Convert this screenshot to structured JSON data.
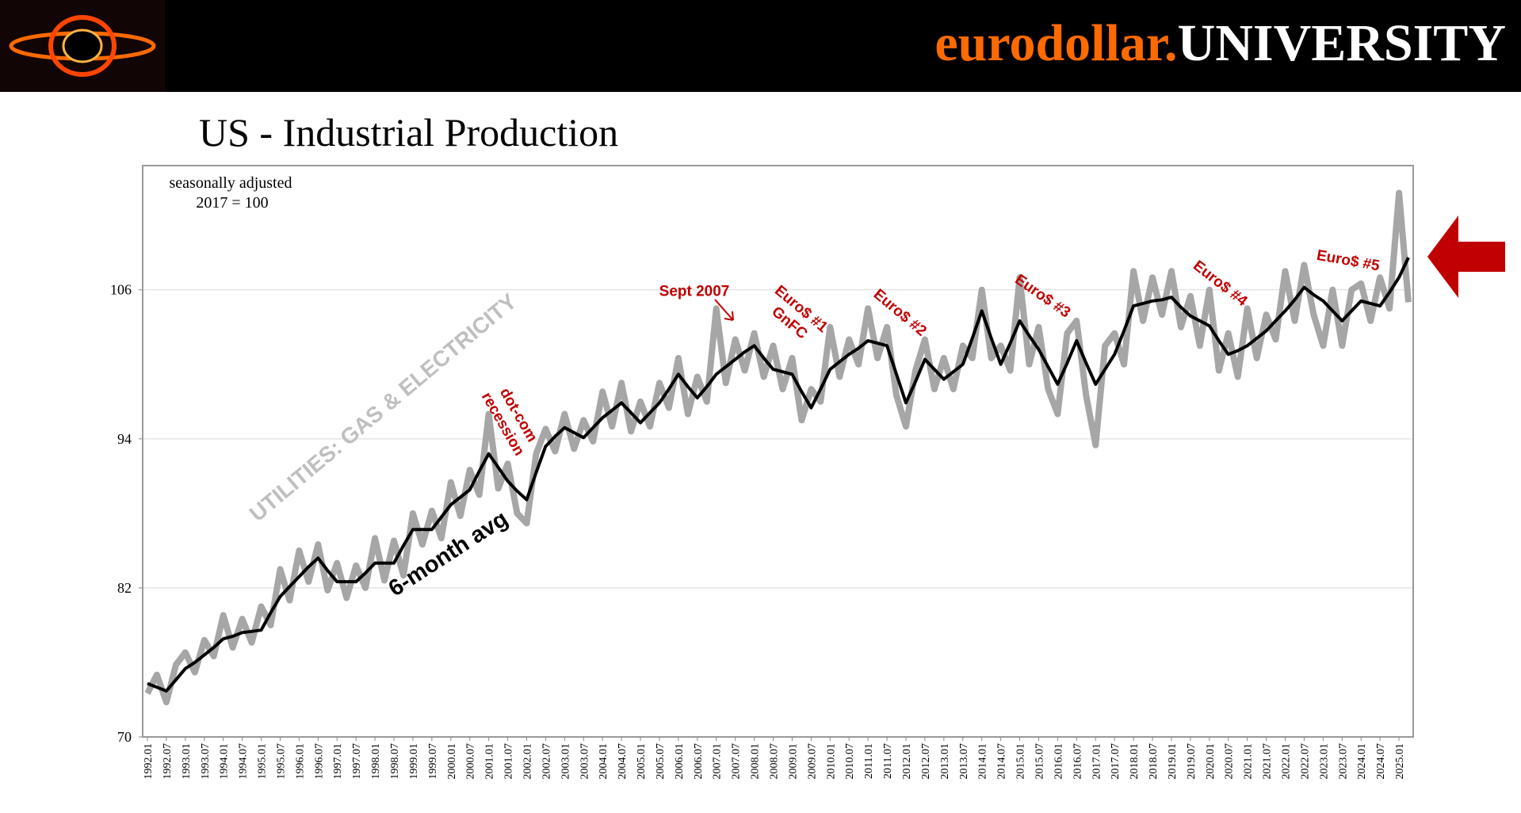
{
  "header": {
    "brand": "eurodollar.",
    "brand2": "UNIVERSITY"
  },
  "chart_data": {
    "type": "line",
    "title": "US - Industrial Production",
    "notes": [
      "seasonally adjusted",
      "2017 = 100"
    ],
    "categories": [
      "1992.01",
      null,
      "1992.07",
      null,
      "1993.01",
      null,
      "1993.07",
      null,
      "1994.01",
      null,
      "1994.07",
      null,
      "1995.01",
      null,
      "1995.07",
      null,
      "1996.01",
      null,
      "1996.07",
      null,
      "1997.01",
      null,
      "1997.07",
      null,
      "1998.01",
      null,
      "1998.07",
      null,
      "1999.01",
      null,
      "1999.07",
      null,
      "2000.01",
      null,
      "2000.07",
      null,
      "2001.01",
      null,
      "2001.07",
      null,
      "2002.01",
      null,
      "2002.07",
      null,
      "2003.01",
      null,
      "2003.07",
      null,
      "2004.01",
      null,
      "2004.07",
      null,
      "2005.01",
      null,
      "2005.07",
      null,
      "2006.01",
      null,
      "2006.07",
      null,
      "2007.01",
      null,
      "2007.07",
      null,
      "2008.01",
      null,
      "2008.07",
      null,
      "2009.01",
      null,
      "2009.07",
      null,
      "2010.01",
      null,
      "2010.07",
      null,
      "2011.01",
      null,
      "2011.07",
      null,
      "2012.01",
      null,
      "2012.07",
      null,
      "2013.01",
      null,
      "2013.07",
      null,
      "2014.01",
      null,
      "2014.07",
      null,
      "2015.01",
      null,
      "2015.07",
      null,
      "2016.01",
      null,
      "2016.07",
      null,
      "2017.01",
      null,
      "2017.07",
      null,
      "2018.01",
      null,
      "2018.07",
      null,
      "2019.01",
      null,
      "2019.07",
      null,
      "2020.01",
      null,
      "2020.07",
      null,
      "2021.01",
      null,
      "2021.07",
      null,
      "2022.01",
      null,
      "2022.07",
      null,
      "2023.01",
      null,
      "2023.07",
      null,
      "2024.01",
      null,
      "2024.07",
      null,
      "2025.01",
      null
    ],
    "series": [
      {
        "color": "#a6a6a6",
        "values": [
          73.5,
          75.0,
          72.8,
          75.8,
          76.8,
          75.2,
          77.8,
          76.5,
          79.8,
          77.2,
          79.5,
          77.6,
          80.5,
          79.0,
          83.5,
          81.0,
          85.0,
          82.5,
          85.5,
          81.8,
          84.0,
          81.2,
          83.8,
          82.0,
          86.0,
          82.6,
          85.8,
          83.0,
          88.0,
          85.5,
          88.2,
          86.0,
          90.5,
          87.8,
          91.5,
          89.5,
          96.0,
          90.0,
          92.0,
          88.0,
          87.2,
          92.8,
          94.8,
          93.0,
          96.0,
          93.2,
          95.5,
          93.8,
          97.8,
          95.0,
          98.5,
          94.6,
          97.0,
          95.0,
          98.5,
          96.5,
          100.5,
          96.0,
          99.0,
          97.0,
          104.5,
          98.5,
          102.0,
          99.5,
          102.5,
          99.0,
          101.5,
          98.0,
          100.5,
          95.5,
          98.0,
          97.0,
          103.0,
          99.0,
          102.0,
          100.0,
          104.5,
          100.5,
          103.0,
          97.5,
          95.0,
          99.5,
          102.0,
          98.0,
          100.5,
          98.0,
          101.5,
          100.5,
          106.0,
          100.5,
          101.5,
          99.5,
          107.0,
          100.0,
          103.0,
          98.0,
          96.0,
          102.5,
          103.5,
          97.5,
          93.5,
          101.5,
          102.5,
          100.0,
          107.5,
          103.5,
          107.0,
          104.0,
          107.5,
          103.0,
          105.5,
          101.5,
          106.0,
          99.5,
          102.5,
          99.0,
          104.5,
          100.5,
          104.0,
          102.0,
          107.5,
          103.5,
          108.0,
          104.0,
          101.5,
          106.0,
          101.5,
          106.0,
          106.5,
          103.5,
          107.0,
          104.5,
          113.8,
          105.0
        ]
      },
      {
        "color": "#000000",
        "values": [
          74.3,
          74.0,
          73.7,
          74.6,
          75.5,
          76.0,
          76.6,
          77.2,
          77.9,
          78.1,
          78.4,
          78.5,
          78.6,
          80.0,
          81.3,
          82.1,
          82.9,
          83.7,
          84.4,
          83.4,
          82.5,
          82.5,
          82.5,
          83.2,
          84.0,
          84.0,
          84.0,
          85.4,
          86.7,
          86.7,
          86.7,
          87.7,
          88.7,
          89.3,
          89.9,
          91.4,
          92.8,
          91.7,
          90.6,
          89.8,
          89.1,
          91.3,
          93.4,
          94.2,
          94.9,
          94.5,
          94.1,
          94.9,
          95.7,
          96.3,
          96.9,
          96.1,
          95.3,
          96.1,
          96.9,
          98.0,
          99.2,
          98.2,
          97.3,
          98.2,
          99.2,
          99.8,
          100.4,
          101.0,
          101.5,
          100.5,
          99.6,
          99.4,
          99.2,
          97.8,
          96.5,
          98.0,
          99.6,
          100.2,
          100.8,
          101.3,
          101.9,
          101.7,
          101.5,
          99.2,
          96.9,
          98.6,
          100.4,
          99.6,
          98.8,
          99.4,
          100.0,
          102.1,
          104.3,
          102.1,
          100.0,
          101.7,
          103.5,
          102.3,
          101.2,
          99.8,
          98.4,
          100.1,
          101.9,
          100.1,
          98.4,
          99.6,
          100.8,
          102.7,
          104.7,
          104.9,
          105.1,
          105.2,
          105.4,
          104.6,
          103.9,
          103.5,
          103.1,
          101.9,
          100.8,
          101.1,
          101.5,
          102.1,
          102.7,
          103.5,
          104.3,
          105.2,
          106.2,
          105.6,
          105.1,
          104.3,
          103.5,
          104.3,
          105.1,
          104.9,
          104.7,
          105.8,
          107.0,
          108.6
        ]
      }
    ],
    "ylim": [
      70,
      116
    ],
    "yticks": [
      70,
      82,
      94,
      106
    ],
    "grid": true,
    "annotations": [
      {
        "lines": [
          "UTILITIES: GAS & ELECTRICITY"
        ],
        "color": "#bfbfbf"
      },
      {
        "lines": [
          "6-month avg"
        ],
        "color": "#000000"
      },
      {
        "lines": [
          "dot-com",
          "recession"
        ],
        "color": "#c00000"
      },
      {
        "lines": [
          "Sept 2007"
        ],
        "color": "#c00000"
      },
      {
        "lines": [
          "Euro$ #1",
          "GnFC"
        ],
        "color": "#c00000"
      },
      {
        "lines": [
          "Euro$ #2"
        ],
        "color": "#c00000"
      },
      {
        "lines": [
          "Euro$ #3"
        ],
        "color": "#c00000"
      },
      {
        "lines": [
          "Euro$ #4"
        ],
        "color": "#c00000"
      },
      {
        "lines": [
          "Euro$ #5"
        ],
        "color": "#c00000"
      }
    ]
  }
}
